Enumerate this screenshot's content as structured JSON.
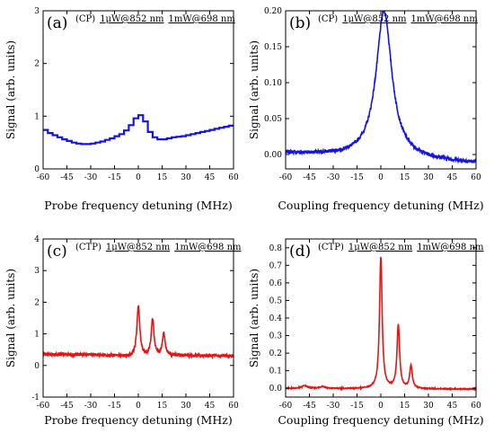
{
  "chart_data": [
    {
      "id": "a",
      "type": "line",
      "panel_label": "(a)",
      "mode": "(CP)",
      "conditions": [
        "1μW@852 nm",
        "1mW@698 nm"
      ],
      "xlabel": "Probe frequency detuning (MHz)",
      "ylabel": "Signal (arb. units)",
      "xlim": [
        -60,
        60
      ],
      "ylim": [
        0,
        3
      ],
      "xticks": [
        "-60",
        "-45",
        "-30",
        "-15",
        "0",
        "15",
        "30",
        "45",
        "60"
      ],
      "yticks": [
        "0",
        "1",
        "2",
        "3"
      ],
      "color": "#1414e6",
      "step": true,
      "series": [
        {
          "x": [
            -60,
            -57,
            -54,
            -51,
            -48,
            -45,
            -42,
            -39,
            -36,
            -33,
            -30,
            -27,
            -24,
            -21,
            -18,
            -15,
            -12,
            -9,
            -6,
            -3,
            0,
            3,
            6,
            9,
            12,
            15,
            18,
            21,
            24,
            27,
            30,
            33,
            36,
            39,
            42,
            45,
            48,
            51,
            54,
            57,
            60
          ],
          "y": [
            0.74,
            0.68,
            0.64,
            0.6,
            0.56,
            0.53,
            0.5,
            0.48,
            0.47,
            0.47,
            0.48,
            0.5,
            0.52,
            0.55,
            0.58,
            0.62,
            0.66,
            0.73,
            0.83,
            0.96,
            1.02,
            0.9,
            0.7,
            0.6,
            0.56,
            0.56,
            0.58,
            0.6,
            0.61,
            0.62,
            0.64,
            0.66,
            0.68,
            0.7,
            0.72,
            0.74,
            0.76,
            0.78,
            0.8,
            0.82,
            0.84
          ]
        }
      ]
    },
    {
      "id": "b",
      "type": "line",
      "panel_label": "(b)",
      "mode": "(CP)",
      "conditions": [
        "1μW@852 nm",
        "1mW@698 nm"
      ],
      "xlabel": "Coupling frequency detuning (MHz)",
      "ylabel": "Signal (arb. units)",
      "xlim": [
        -60,
        60
      ],
      "ylim": [
        -0.02,
        0.2
      ],
      "xticks": [
        "-60",
        "-45",
        "-30",
        "-15",
        "0",
        "15",
        "30",
        "45",
        "60"
      ],
      "yticks": [
        "0.00",
        "0.05",
        "0.10",
        "0.15",
        "0.20"
      ],
      "color": "#1414e6",
      "peaks": [
        {
          "center": 2,
          "amp": 0.205,
          "width": 6
        }
      ],
      "baseline": {
        "x0": -60,
        "y0": 0.002,
        "x1": 60,
        "y1": -0.012
      },
      "noise": 0.0025
    },
    {
      "id": "c",
      "type": "line",
      "panel_label": "(c)",
      "mode": "(CTP)",
      "conditions": [
        "1μW@852 nm",
        "1mW@698 nm"
      ],
      "xlabel": "Probe frequency detuning (MHz)",
      "ylabel": "Signal (arb. units)",
      "xlim": [
        -60,
        60
      ],
      "ylim": [
        -1,
        4
      ],
      "xticks": [
        "-60",
        "-45",
        "-30",
        "-15",
        "0",
        "15",
        "30",
        "45",
        "60"
      ],
      "yticks": [
        "-1",
        "0",
        "1",
        "2",
        "3",
        "4"
      ],
      "color": "#e61414",
      "peaks": [
        {
          "center": 0,
          "amp": 1.6,
          "width": 1.1
        },
        {
          "center": 9,
          "amp": 1.15,
          "width": 1.0
        },
        {
          "center": 16,
          "amp": 0.7,
          "width": 1.0
        }
      ],
      "baseline": {
        "x0": -60,
        "y0": 0.35,
        "x1": 60,
        "y1": 0.3,
        "dip": -0.05
      },
      "noise": 0.05
    },
    {
      "id": "d",
      "type": "line",
      "panel_label": "(d)",
      "mode": "(CTP)",
      "conditions": [
        "1μW@852 nm",
        "1mW@698 nm"
      ],
      "xlabel": "Coupling frequency detuning (MHz)",
      "ylabel": "Signal (arb. units)",
      "xlim": [
        -60,
        60
      ],
      "ylim": [
        -0.05,
        0.85
      ],
      "xticks": [
        "-60",
        "-45",
        "-30",
        "-15",
        "0",
        "15",
        "30",
        "45",
        "60"
      ],
      "yticks": [
        "0.0",
        "0.1",
        "0.2",
        "0.3",
        "0.4",
        "0.5",
        "0.6",
        "0.7",
        "0.8"
      ],
      "color": "#e61414",
      "peaks": [
        {
          "center": 0,
          "amp": 0.75,
          "width": 1.0
        },
        {
          "center": 11,
          "amp": 0.36,
          "width": 1.0
        },
        {
          "center": 19,
          "amp": 0.13,
          "width": 1.0
        },
        {
          "center": -48,
          "amp": 0.015,
          "width": 2.0
        },
        {
          "center": -37,
          "amp": 0.01,
          "width": 2.0
        }
      ],
      "baseline": {
        "x0": -60,
        "y0": 0.0,
        "x1": 60,
        "y1": -0.005
      },
      "noise": 0.003
    }
  ]
}
